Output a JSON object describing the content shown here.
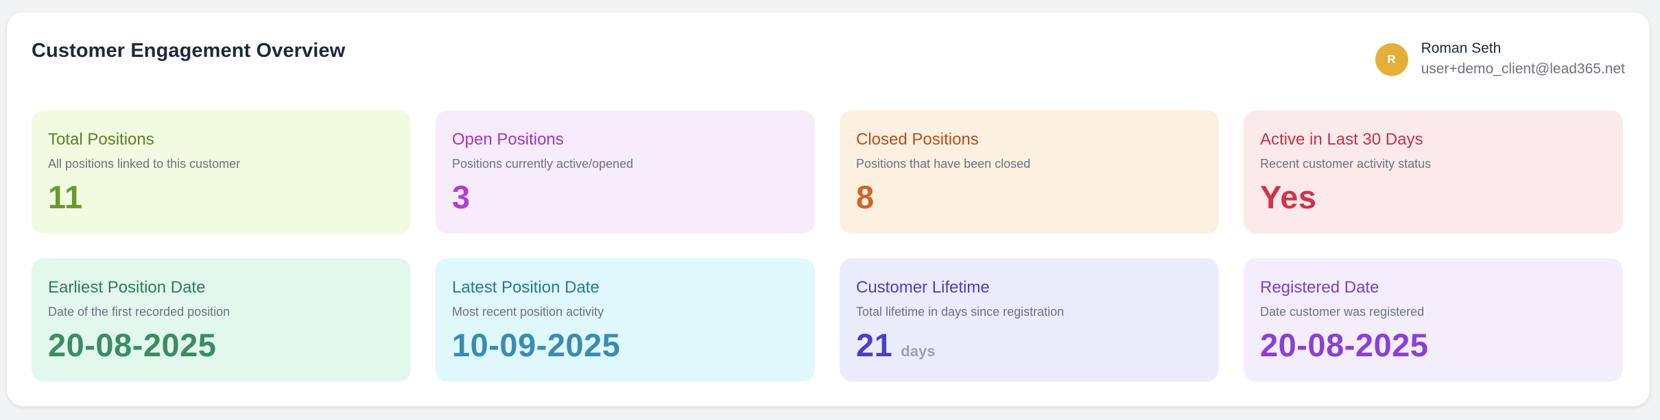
{
  "header": {
    "title": "Customer Engagement Overview"
  },
  "user": {
    "initial": "R",
    "name": "Roman Seth",
    "email": "user+demo_client@lead365.net",
    "avatar_color": "#e3af3a"
  },
  "cards": [
    {
      "title": "Total Positions",
      "description": "All positions linked to this customer",
      "value": "11",
      "unit": "",
      "bg": "#f1fbe0",
      "title_color": "#5f7f22",
      "value_color": "#6b9a2a"
    },
    {
      "title": "Open Positions",
      "description": "Positions currently active/opened",
      "value": "3",
      "unit": "",
      "bg": "#f7ecfc",
      "title_color": "#a335b8",
      "value_color": "#b63cc9"
    },
    {
      "title": "Closed Positions",
      "description": "Positions that have been closed",
      "value": "8",
      "unit": "",
      "bg": "#fcf1e1",
      "title_color": "#b74d1d",
      "value_color": "#d2622a"
    },
    {
      "title": "Active in Last 30 Days",
      "description": "Recent customer activity status",
      "value": "Yes",
      "unit": "",
      "bg": "#fceaea",
      "title_color": "#c23246",
      "value_color": "#d1334c"
    },
    {
      "title": "Earliest Position Date",
      "description": "Date of the first recorded position",
      "value": "20-08-2025",
      "unit": "",
      "bg": "#e2f8ec",
      "title_color": "#2f7a56",
      "value_color": "#3b8c64"
    },
    {
      "title": "Latest Position Date",
      "description": "Most recent position activity",
      "value": "10-09-2025",
      "unit": "",
      "bg": "#dff8fc",
      "title_color": "#2b7595",
      "value_color": "#3a8caf"
    },
    {
      "title": "Customer Lifetime",
      "description": "Total lifetime in days since registration",
      "value": "21",
      "unit": "days",
      "bg": "#ebecfb",
      "title_color": "#4a3fc0",
      "value_color": "#4a3fc9"
    },
    {
      "title": "Registered Date",
      "description": "Date customer was registered",
      "value": "20-08-2025",
      "unit": "",
      "bg": "#f4eefc",
      "title_color": "#7b3fc8",
      "value_color": "#8a3fd8"
    }
  ]
}
